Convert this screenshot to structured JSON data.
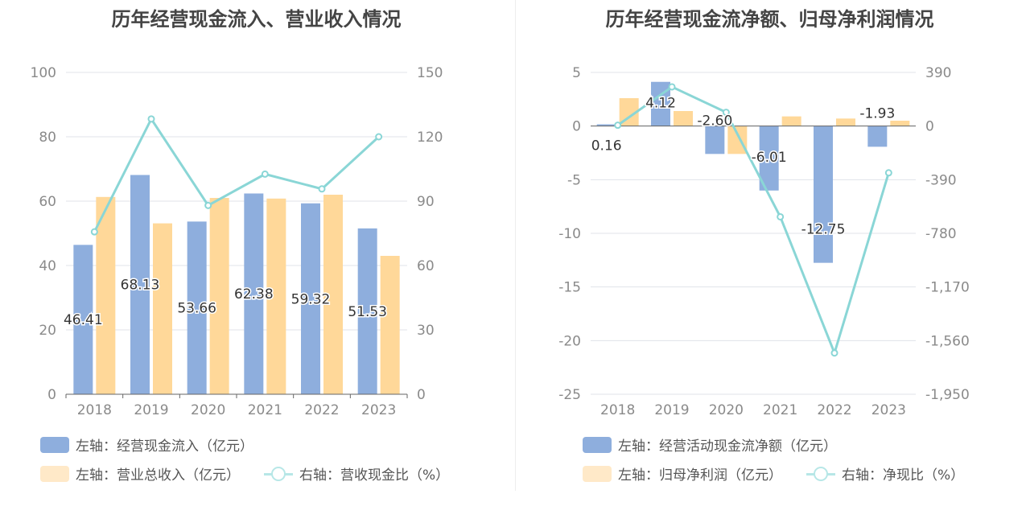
{
  "colors": {
    "bar_primary": "#8eaedd",
    "bar_secondary": "#ffd899",
    "line": "#8ad6d6",
    "legend_secondary": "#ffe9c8",
    "legend_line": "#b7e7e7",
    "grid": "#e0e3ea",
    "axis_text": "#8a8a8a",
    "label_text": "#333333"
  },
  "chart_data": [
    {
      "type": "bar",
      "title": "历年经营现金流入、营业收入情况",
      "categories": [
        "2018",
        "2019",
        "2020",
        "2021",
        "2022",
        "2023"
      ],
      "left_axis": {
        "ylim": [
          0,
          100
        ],
        "ticks": [
          "0",
          "20",
          "40",
          "60",
          "80",
          "100"
        ]
      },
      "right_axis": {
        "ylim": [
          0,
          150
        ],
        "ticks": [
          "0",
          "30",
          "60",
          "90",
          "120",
          "150"
        ]
      },
      "series": [
        {
          "name": "左轴：经营现金流入（亿元）",
          "axis": "left",
          "kind": "bar",
          "values": [
            46.41,
            68.13,
            53.66,
            62.38,
            59.32,
            51.53
          ],
          "labels": [
            "46.41",
            "68.13",
            "53.66",
            "62.38",
            "59.32",
            "51.53"
          ]
        },
        {
          "name": "左轴：营业总收入（亿元）",
          "axis": "left",
          "kind": "bar",
          "values": [
            61.3,
            53.1,
            61.0,
            60.8,
            62.0,
            43.0
          ]
        },
        {
          "name": "右轴：营收现金比（%）",
          "axis": "right",
          "kind": "line",
          "values": [
            75.7,
            128.3,
            88.0,
            102.6,
            95.7,
            120.0
          ]
        }
      ],
      "grid": true,
      "legend": "bottom"
    },
    {
      "type": "bar",
      "title": "历年经营现金流净额、归母净利润情况",
      "categories": [
        "2018",
        "2019",
        "2020",
        "2021",
        "2022",
        "2023"
      ],
      "left_axis": {
        "ylim": [
          -25,
          5
        ],
        "ticks": [
          "-25",
          "-20",
          "-15",
          "-10",
          "-5",
          "0",
          "5"
        ]
      },
      "right_axis": {
        "ylim": [
          -1950,
          390
        ],
        "ticks": [
          "-1,950",
          "-1,560",
          "-1,170",
          "-780",
          "-390",
          "0",
          "390"
        ]
      },
      "series": [
        {
          "name": "左轴：经营活动现金流净额（亿元）",
          "axis": "left",
          "kind": "bar",
          "values": [
            0.16,
            4.12,
            -2.6,
            -6.01,
            -12.75,
            -1.93
          ],
          "labels": [
            "0.16",
            "4.12",
            "-2.60",
            "-6.01",
            "-12.75",
            "-1.93"
          ]
        },
        {
          "name": "左轴：归母净利润（亿元）",
          "axis": "left",
          "kind": "bar",
          "values": [
            2.6,
            1.4,
            -2.6,
            0.9,
            0.7,
            0.5
          ]
        },
        {
          "name": "右轴：净现比（%）",
          "axis": "right",
          "kind": "line",
          "values": [
            6,
            285,
            100,
            -660,
            -1650,
            -340
          ]
        }
      ],
      "grid": true,
      "legend": "bottom"
    }
  ]
}
